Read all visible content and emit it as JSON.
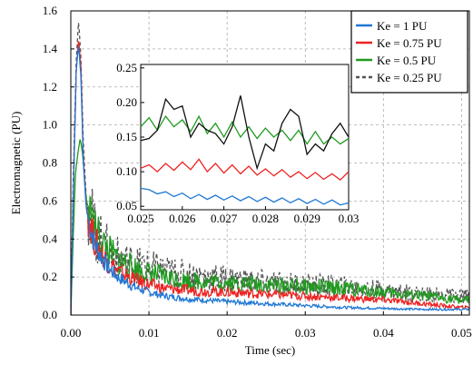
{
  "chart_data": [
    {
      "type": "line",
      "title": "",
      "xlabel": "Time (sec)",
      "ylabel": "Electromagnetic (PU)",
      "xlim": [
        0,
        0.051
      ],
      "ylim": [
        0,
        1.6
      ],
      "xticks": [
        0,
        0.01,
        0.02,
        0.03,
        0.04,
        0.05
      ],
      "xtick_labels": [
        "0.00",
        "0.01",
        "0.02",
        "0.03",
        "0.04",
        "0.05"
      ],
      "yticks": [
        0,
        0.2,
        0.4,
        0.6,
        0.8,
        1.0,
        1.2,
        1.4,
        1.6
      ],
      "ytick_labels": [
        "0.0",
        "0.2",
        "0.4",
        "0.6",
        "0.8",
        "1.0",
        "1.2",
        "1.4",
        "1.6"
      ],
      "grid": true,
      "legend_position": "top-right",
      "series": [
        {
          "name": "Ke = 1 PU",
          "color": "#1f77d4",
          "dash": "solid",
          "x": [
            0,
            0.0003,
            0.0007,
            0.001,
            0.0013,
            0.0016,
            0.002,
            0.003,
            0.004,
            0.005,
            0.006,
            0.008,
            0.01,
            0.012,
            0.015,
            0.02,
            0.025,
            0.03,
            0.035,
            0.04,
            0.045,
            0.05
          ],
          "y": [
            0,
            0.6,
            1.3,
            1.42,
            1.25,
            0.8,
            0.55,
            0.38,
            0.3,
            0.24,
            0.2,
            0.15,
            0.12,
            0.1,
            0.085,
            0.07,
            0.06,
            0.05,
            0.04,
            0.035,
            0.03,
            0.03
          ]
        },
        {
          "name": "Ke = 0.75 PU",
          "color": "#ee2222",
          "dash": "solid",
          "x": [
            0,
            0.0003,
            0.0007,
            0.001,
            0.0013,
            0.0016,
            0.002,
            0.003,
            0.004,
            0.005,
            0.006,
            0.008,
            0.01,
            0.012,
            0.015,
            0.02,
            0.025,
            0.03,
            0.035,
            0.04,
            0.045,
            0.05
          ],
          "y": [
            0,
            0.6,
            1.3,
            1.45,
            1.3,
            0.82,
            0.56,
            0.4,
            0.32,
            0.27,
            0.23,
            0.19,
            0.16,
            0.14,
            0.13,
            0.12,
            0.11,
            0.1,
            0.09,
            0.08,
            0.06,
            0.04
          ]
        },
        {
          "name": "Ke = 0.5 PU",
          "color": "#1f9a1f",
          "dash": "solid",
          "x": [
            0,
            0.0003,
            0.0006,
            0.0009,
            0.0012,
            0.0015,
            0.002,
            0.003,
            0.004,
            0.005,
            0.006,
            0.008,
            0.01,
            0.012,
            0.015,
            0.02,
            0.025,
            0.03,
            0.035,
            0.04,
            0.045,
            0.05
          ],
          "y": [
            0,
            0.4,
            0.75,
            0.85,
            0.93,
            0.85,
            0.6,
            0.45,
            0.38,
            0.33,
            0.29,
            0.25,
            0.22,
            0.2,
            0.18,
            0.17,
            0.16,
            0.15,
            0.14,
            0.12,
            0.1,
            0.08
          ]
        },
        {
          "name": "Ke = 0.25 PU",
          "color": "#555555",
          "dash": "dashed",
          "x": [
            0,
            0.0003,
            0.0007,
            0.001,
            0.0013,
            0.0016,
            0.002,
            0.003,
            0.004,
            0.005,
            0.006,
            0.008,
            0.01,
            0.012,
            0.015,
            0.02,
            0.025,
            0.03,
            0.035,
            0.04,
            0.045,
            0.05
          ],
          "y": [
            0,
            0.7,
            1.35,
            1.55,
            1.35,
            0.9,
            0.6,
            0.45,
            0.38,
            0.33,
            0.3,
            0.27,
            0.25,
            0.23,
            0.21,
            0.19,
            0.17,
            0.16,
            0.15,
            0.13,
            0.11,
            0.1
          ]
        }
      ]
    },
    {
      "type": "line",
      "title": "",
      "xlabel": "",
      "ylabel": "",
      "xlim": [
        0.025,
        0.03
      ],
      "ylim": [
        0.045,
        0.255
      ],
      "xticks": [
        0.025,
        0.026,
        0.027,
        0.028,
        0.029,
        0.03
      ],
      "xtick_labels": [
        "0.025",
        "0.026",
        "0.027",
        "0.028",
        "0.029",
        "0.03"
      ],
      "yticks": [
        0.05,
        0.1,
        0.15,
        0.2,
        0.25
      ],
      "ytick_labels": [
        "0.05",
        "0.10",
        "0.15",
        "0.20",
        "0.25"
      ],
      "grid": false,
      "series": [
        {
          "name": "Ke = 1 PU",
          "color": "#1f77d4",
          "x": [
            0.025,
            0.0252,
            0.0254,
            0.0256,
            0.0258,
            0.026,
            0.0262,
            0.0264,
            0.0266,
            0.0268,
            0.027,
            0.0272,
            0.0274,
            0.0276,
            0.0278,
            0.028,
            0.0282,
            0.0284,
            0.0286,
            0.0288,
            0.029,
            0.0292,
            0.0294,
            0.0296,
            0.0298,
            0.03
          ],
          "y": [
            0.076,
            0.074,
            0.068,
            0.071,
            0.064,
            0.069,
            0.061,
            0.067,
            0.06,
            0.066,
            0.059,
            0.065,
            0.058,
            0.064,
            0.057,
            0.063,
            0.056,
            0.062,
            0.055,
            0.061,
            0.054,
            0.06,
            0.053,
            0.059,
            0.052,
            0.055
          ]
        },
        {
          "name": "Ke = 0.75 PU",
          "color": "#ee2222",
          "x": [
            0.025,
            0.0252,
            0.0254,
            0.0256,
            0.0258,
            0.026,
            0.0262,
            0.0264,
            0.0266,
            0.0268,
            0.027,
            0.0272,
            0.0274,
            0.0276,
            0.0278,
            0.028,
            0.0282,
            0.0284,
            0.0286,
            0.0288,
            0.029,
            0.0292,
            0.0294,
            0.0296,
            0.0298,
            0.03
          ],
          "y": [
            0.105,
            0.11,
            0.1,
            0.112,
            0.102,
            0.114,
            0.103,
            0.118,
            0.1,
            0.112,
            0.098,
            0.11,
            0.097,
            0.108,
            0.095,
            0.104,
            0.094,
            0.103,
            0.092,
            0.1,
            0.09,
            0.099,
            0.089,
            0.097,
            0.088,
            0.1
          ]
        },
        {
          "name": "Ke = 0.5 PU",
          "color": "#1f9a1f",
          "x": [
            0.025,
            0.0252,
            0.0254,
            0.0256,
            0.0258,
            0.026,
            0.0262,
            0.0264,
            0.0266,
            0.0268,
            0.027,
            0.0272,
            0.0274,
            0.0276,
            0.0278,
            0.028,
            0.0282,
            0.0284,
            0.0286,
            0.0288,
            0.029,
            0.0292,
            0.0294,
            0.0296,
            0.0298,
            0.03
          ],
          "y": [
            0.165,
            0.178,
            0.16,
            0.18,
            0.165,
            0.175,
            0.158,
            0.18,
            0.155,
            0.17,
            0.15,
            0.172,
            0.15,
            0.165,
            0.148,
            0.163,
            0.15,
            0.16,
            0.145,
            0.16,
            0.14,
            0.158,
            0.14,
            0.15,
            0.14,
            0.148
          ]
        },
        {
          "name": "Ke = 0.25 PU",
          "color": "#111111",
          "x": [
            0.025,
            0.0252,
            0.0254,
            0.0256,
            0.0258,
            0.026,
            0.0262,
            0.0264,
            0.0266,
            0.0268,
            0.027,
            0.0272,
            0.0274,
            0.0276,
            0.0278,
            0.028,
            0.0282,
            0.0284,
            0.0286,
            0.0288,
            0.029,
            0.0292,
            0.0294,
            0.0296,
            0.0298,
            0.03
          ],
          "y": [
            0.145,
            0.148,
            0.16,
            0.205,
            0.19,
            0.195,
            0.15,
            0.17,
            0.16,
            0.155,
            0.14,
            0.165,
            0.21,
            0.15,
            0.105,
            0.14,
            0.13,
            0.17,
            0.19,
            0.18,
            0.125,
            0.14,
            0.13,
            0.155,
            0.17,
            0.15
          ]
        }
      ]
    }
  ]
}
